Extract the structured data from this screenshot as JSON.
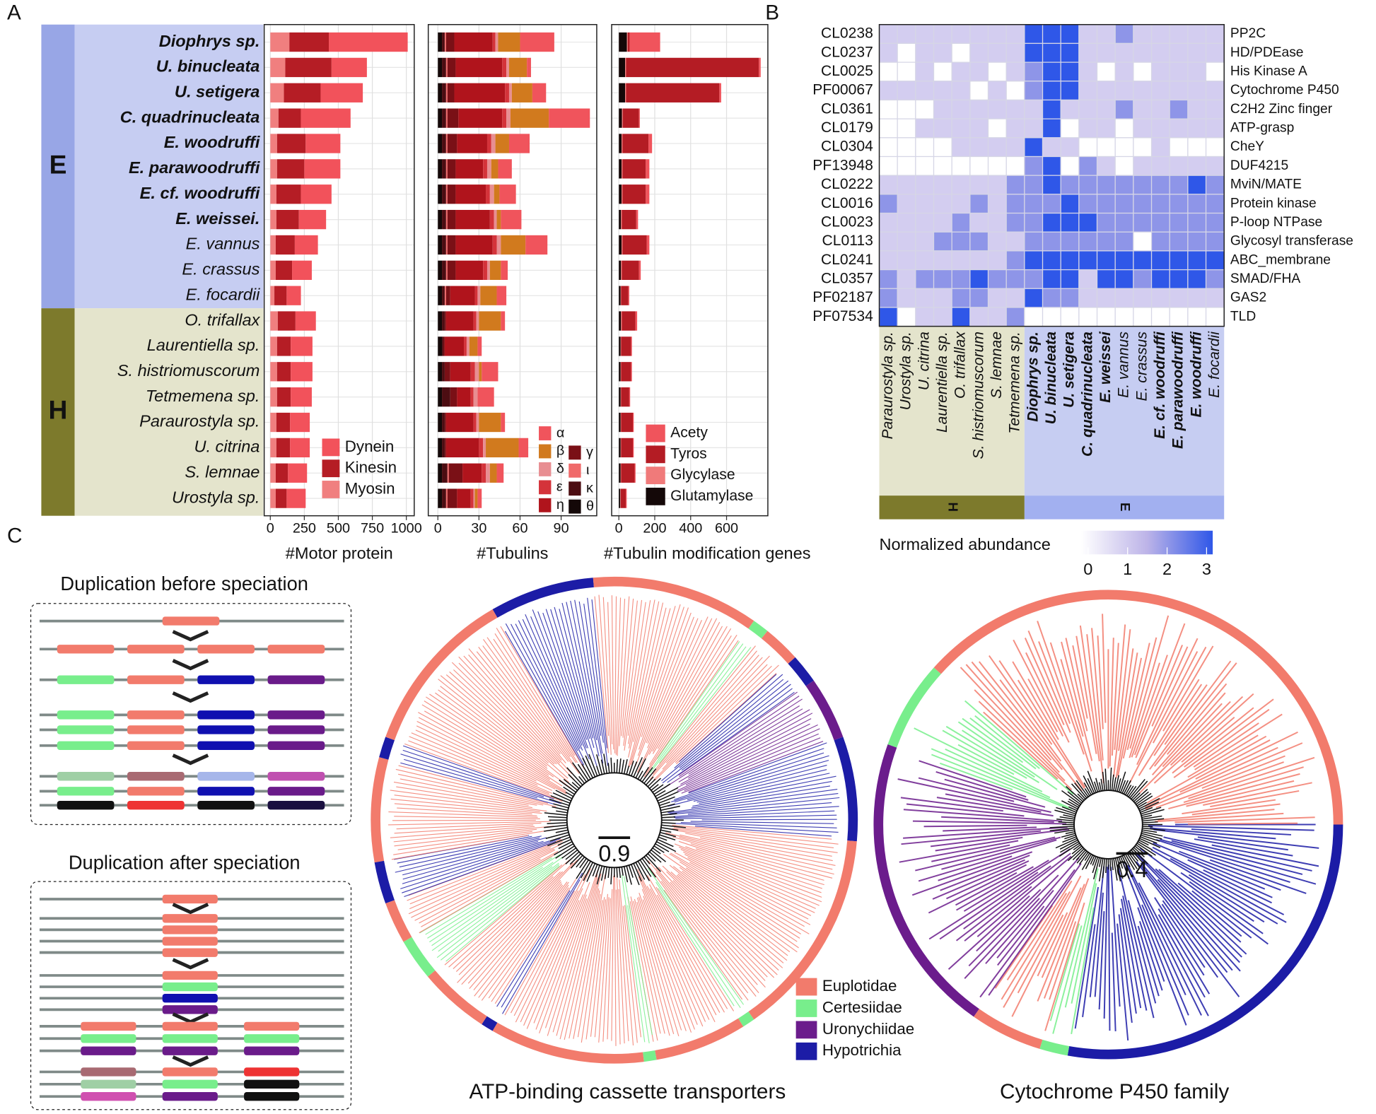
{
  "panel_labels": [
    "A",
    "B",
    "C"
  ],
  "chart_data": [
    {
      "type": "bar",
      "orientation": "horizontal",
      "stacked": true,
      "xlabel": "#Motor protein",
      "group_labels": [
        "E",
        "H"
      ],
      "categories": [
        "Diophrys sp.",
        "U. binucleata",
        "U. setigera",
        "C. quadrinucleata",
        "E. woodruffi",
        "E. parawoodruffi",
        "E. cf. woodruffi",
        "E. weissei.",
        "E. vannus",
        "E. crassus",
        "E. focardii",
        "O. trifallax",
        "Laurentiella sp.",
        "S. histriomuscorum",
        "Tetmemena sp.",
        "Paraurostyla sp.",
        "U. citrina",
        "S. lemnae",
        "Urostyla sp."
      ],
      "bold": [
        true,
        true,
        true,
        true,
        true,
        true,
        true,
        true,
        false,
        false,
        false,
        false,
        false,
        false,
        false,
        false,
        false,
        false,
        false
      ],
      "series": [
        {
          "name": "Dynein",
          "color": "#f2525b",
          "values": [
            580,
            260,
            310,
            365,
            255,
            265,
            225,
            200,
            170,
            145,
            105,
            150,
            160,
            160,
            155,
            145,
            145,
            140,
            140
          ]
        },
        {
          "name": "Kinesin",
          "color": "#b51d25",
          "values": [
            290,
            340,
            270,
            165,
            210,
            200,
            180,
            165,
            140,
            120,
            90,
            130,
            100,
            100,
            100,
            100,
            100,
            90,
            80
          ]
        },
        {
          "name": "Myosin",
          "color": "#f07f7f",
          "values": [
            140,
            110,
            100,
            60,
            50,
            50,
            45,
            45,
            40,
            40,
            30,
            55,
            50,
            50,
            50,
            45,
            45,
            40,
            40
          ]
        }
      ],
      "xlim": [
        -45,
        1058
      ],
      "xticks": [
        0,
        250,
        500,
        750,
        1000
      ],
      "grid": true,
      "legend": "bottom-right"
    },
    {
      "type": "bar",
      "orientation": "horizontal",
      "stacked": true,
      "xlabel": "#Tubulins",
      "series": [
        {
          "name": "α",
          "color": "#f0545c",
          "values": [
            25,
            3,
            10,
            30,
            15,
            10,
            12,
            15,
            16,
            5,
            7,
            3,
            3,
            12,
            12,
            3,
            7,
            5,
            3
          ]
        },
        {
          "name": "β",
          "color": "#d17a1e",
          "values": [
            16,
            13,
            15,
            28,
            10,
            5,
            4,
            3,
            18,
            8,
            12,
            16,
            6,
            2,
            0,
            16,
            24,
            5,
            2
          ]
        },
        {
          "name": "δ",
          "color": "#e88e92",
          "values": [
            2,
            2,
            2,
            3,
            3,
            3,
            3,
            2,
            3,
            2,
            2,
            2,
            2,
            3,
            3,
            2,
            2,
            3,
            1
          ]
        },
        {
          "name": "ε",
          "color": "#d4333a",
          "values": [
            2,
            3,
            3,
            3,
            3,
            3,
            3,
            3,
            3,
            3,
            2,
            2,
            2,
            3,
            2,
            2,
            3,
            3,
            2
          ]
        },
        {
          "name": "η",
          "color": "#b0141c",
          "values": [
            28,
            34,
            37,
            32,
            22,
            20,
            22,
            25,
            27,
            20,
            18,
            20,
            14,
            15,
            10,
            20,
            24,
            14,
            10
          ]
        },
        {
          "name": "γ",
          "color": "#7a1016",
          "values": [
            6,
            6,
            5,
            8,
            7,
            6,
            6,
            6,
            6,
            6,
            3,
            1,
            1,
            4,
            5,
            1,
            1,
            10,
            7
          ]
        },
        {
          "name": "ι",
          "color": "#f06a6a",
          "values": [
            1,
            1,
            1,
            1,
            1,
            1,
            1,
            1,
            1,
            1,
            1,
            0,
            0,
            0,
            0,
            0,
            0,
            1,
            1
          ]
        },
        {
          "name": "κ",
          "color": "#4c0d12",
          "values": [
            2,
            3,
            3,
            3,
            3,
            3,
            3,
            3,
            3,
            3,
            2,
            2,
            1,
            2,
            6,
            2,
            2,
            4,
            3
          ]
        },
        {
          "name": "θ",
          "color": "#140808",
          "values": [
            3,
            3,
            3,
            3,
            3,
            3,
            3,
            3,
            3,
            3,
            3,
            3,
            3,
            3,
            3,
            3,
            3,
            3,
            3
          ]
        }
      ],
      "xlim": [
        -7,
        116
      ],
      "xticks": [
        0,
        30,
        60,
        90
      ],
      "grid": true,
      "legend": "bottom-right"
    },
    {
      "type": "bar",
      "orientation": "horizontal",
      "stacked": true,
      "xlabel": "#Tubulin modification genes",
      "series": [
        {
          "name": "Acety",
          "color": "#f0545c",
          "values": [
            170,
            10,
            10,
            5,
            20,
            20,
            20,
            10,
            15,
            10,
            5,
            10,
            5,
            5,
            5,
            5,
            5,
            5,
            5
          ]
        },
        {
          "name": "Tyros",
          "color": "#b41c24",
          "values": [
            10,
            740,
            520,
            90,
            145,
            130,
            130,
            80,
            135,
            95,
            40,
            75,
            55,
            55,
            45,
            65,
            65,
            75,
            28
          ]
        },
        {
          "name": "Glycylase",
          "color": "#f07a7a",
          "values": [
            5,
            5,
            5,
            5,
            5,
            5,
            5,
            5,
            5,
            5,
            3,
            5,
            3,
            3,
            3,
            3,
            3,
            3,
            3
          ]
        },
        {
          "name": "Glutamylase",
          "color": "#140808",
          "values": [
            45,
            35,
            35,
            17,
            15,
            15,
            15,
            12,
            15,
            12,
            10,
            12,
            10,
            10,
            10,
            10,
            10,
            10,
            8
          ]
        }
      ],
      "xlim": [
        -40,
        830
      ],
      "xticks": [
        0,
        200,
        400,
        600
      ],
      "grid": true,
      "legend": "bottom-right"
    },
    {
      "type": "heatmap",
      "row_ids": [
        "CL0238",
        "CL0237",
        "CL0025",
        "PF00067",
        "CL0361",
        "CL0179",
        "CL0304",
        "PF13948",
        "CL0222",
        "CL0016",
        "CL0023",
        "CL0113",
        "CL0241",
        "CL0357",
        "PF02187",
        "PF07534"
      ],
      "row_names": [
        "PP2C",
        "HD/PDEase",
        "His Kinase A",
        "Cytochrome P450",
        "C2H2 Zinc finger",
        "ATP-grasp",
        "CheY",
        "DUF4215",
        "MviN/MATE",
        "Protein kinase",
        "P-loop NTPase",
        "Glycosyl transferase",
        "ABC_membrane",
        "SMAD/FHA",
        "GAS2",
        "TLD"
      ],
      "columns": [
        "Paraurostyla sp.",
        "Urostyla sp.",
        "U. citrina",
        "Laurentiella sp.",
        "O. trifallax",
        "S. histriomuscorum",
        "S. lemnae",
        "Tetmemena sp.",
        "Diophrys sp.",
        "U. binucleata",
        "U. setigera",
        "C. quadrinucleata",
        "E. weissei",
        "E. vannus",
        "E. crassus",
        "E. cf. woodruffi",
        "E. parawoodruffi",
        "E. woodruffi",
        "E. focardii"
      ],
      "column_bold": [
        false,
        false,
        false,
        false,
        false,
        false,
        false,
        false,
        true,
        true,
        true,
        true,
        true,
        false,
        false,
        true,
        true,
        true,
        false
      ],
      "group_labels": [
        "H",
        "E"
      ],
      "values": [
        [
          1,
          1,
          1,
          1,
          1,
          1,
          1,
          1,
          3,
          3,
          3,
          1,
          1,
          2,
          1,
          1,
          1,
          1,
          1
        ],
        [
          1,
          0,
          1,
          1,
          0,
          1,
          1,
          1,
          3,
          3,
          3,
          1,
          1,
          1,
          1,
          1,
          1,
          1,
          1
        ],
        [
          0,
          0,
          1,
          0,
          1,
          1,
          0,
          1,
          2,
          3,
          3,
          1,
          0,
          1,
          0,
          1,
          1,
          1,
          0
        ],
        [
          1,
          1,
          1,
          1,
          1,
          0,
          1,
          0,
          2,
          3,
          3,
          1,
          1,
          1,
          1,
          1,
          1,
          1,
          1
        ],
        [
          0,
          0,
          0,
          1,
          1,
          1,
          1,
          1,
          1,
          3,
          1,
          1,
          1,
          2,
          1,
          1,
          2,
          1,
          1
        ],
        [
          0,
          0,
          1,
          1,
          1,
          1,
          0,
          1,
          1,
          3,
          0,
          1,
          1,
          0,
          1,
          1,
          1,
          1,
          1
        ],
        [
          0,
          0,
          0,
          0,
          1,
          1,
          1,
          1,
          3,
          1,
          1,
          0,
          0,
          0,
          0,
          1,
          0,
          0,
          0
        ],
        [
          0,
          0,
          0,
          0,
          0,
          0,
          0,
          0,
          2,
          3,
          0,
          2,
          1,
          0,
          1,
          1,
          1,
          1,
          1
        ],
        [
          1,
          1,
          1,
          1,
          1,
          1,
          1,
          2,
          2,
          3,
          2,
          2,
          2,
          2,
          2,
          2,
          2,
          3,
          2
        ],
        [
          2,
          1,
          1,
          1,
          1,
          2,
          1,
          2,
          2,
          2,
          3,
          2,
          2,
          2,
          2,
          2,
          2,
          2,
          2
        ],
        [
          1,
          1,
          1,
          1,
          2,
          1,
          1,
          2,
          2,
          3,
          3,
          3,
          2,
          2,
          2,
          2,
          2,
          2,
          2
        ],
        [
          1,
          1,
          1,
          2,
          2,
          2,
          1,
          1,
          2,
          2,
          2,
          2,
          2,
          2,
          0,
          2,
          2,
          2,
          2
        ],
        [
          1,
          1,
          1,
          1,
          1,
          1,
          1,
          2,
          3,
          3,
          3,
          3,
          3,
          3,
          3,
          3,
          3,
          3,
          3
        ],
        [
          2,
          1,
          2,
          2,
          2,
          3,
          2,
          2,
          2,
          3,
          3,
          1,
          3,
          3,
          2,
          3,
          3,
          3,
          2
        ],
        [
          2,
          1,
          1,
          1,
          2,
          2,
          1,
          1,
          3,
          2,
          2,
          1,
          1,
          1,
          1,
          1,
          1,
          1,
          1
        ],
        [
          3,
          0,
          1,
          1,
          3,
          1,
          1,
          2,
          0,
          0,
          0,
          0,
          0,
          0,
          0,
          0,
          0,
          0,
          0
        ]
      ],
      "colorbar_label": "Normalized abundance",
      "zlim": [
        0,
        3
      ],
      "zticks": [
        0,
        1,
        2,
        3
      ],
      "colorscale": [
        "#ffffff",
        "#bdb4e8",
        "#2f57e8"
      ]
    }
  ],
  "panel_c": {
    "diagrams": [
      "Duplication before speciation",
      "Duplication after speciation"
    ],
    "trees": [
      {
        "title": "ATP-binding cassette transporters",
        "scale": 0.9
      },
      {
        "title": "Cytochrome P450 family",
        "scale": 0.4
      }
    ],
    "legend": [
      {
        "name": "Euplotidae",
        "color": "#f27b6c"
      },
      {
        "name": "Certesiidae",
        "color": "#78ee8c"
      },
      {
        "name": "Uronychiidae",
        "color": "#6b1c8c"
      },
      {
        "name": "Hypotrichia",
        "color": "#1c1ca6"
      }
    ]
  }
}
